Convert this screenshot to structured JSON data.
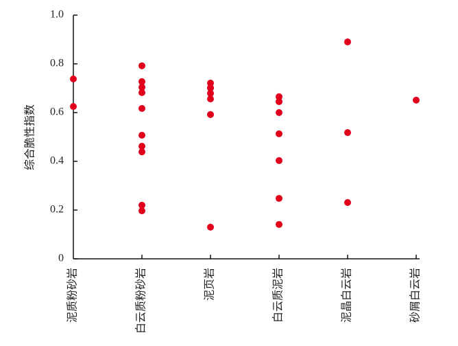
{
  "chart_data": {
    "type": "strip",
    "y_label": "综合脆性指数",
    "categories": [
      "泥质粉砂岩",
      "白云质粉砂岩",
      "泥页岩",
      "白云质泥岩",
      "泥晶白云岩",
      "砂屑白云岩"
    ],
    "values": [
      [
        0.738,
        0.625
      ],
      [
        0.792,
        0.727,
        0.704,
        0.682,
        0.617,
        0.507,
        0.462,
        0.439,
        0.22,
        0.197
      ],
      [
        0.721,
        0.701,
        0.701,
        0.679,
        0.656,
        0.592,
        0.13
      ],
      [
        0.665,
        0.645,
        0.645,
        0.6,
        0.513,
        0.403,
        0.248,
        0.141
      ],
      [
        0.89,
        0.518,
        0.231
      ],
      [
        0.651
      ]
    ],
    "color": "#e0001b",
    "ylim": [
      0,
      1
    ],
    "yticks": [
      0,
      0.2,
      0.4,
      0.6,
      0.8,
      {
        "value": 1,
        "label": "1.0"
      }
    ]
  }
}
